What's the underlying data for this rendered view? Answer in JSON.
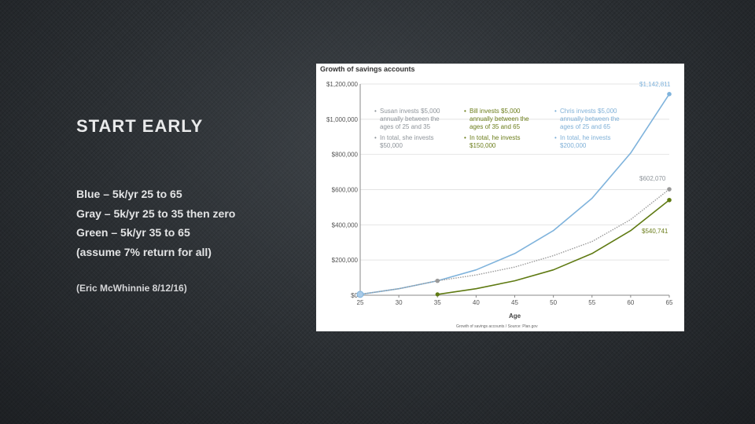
{
  "slide": {
    "title": "START EARLY",
    "lines": [
      "Blue – 5k/yr 25 to 65",
      "Gray – 5k/yr 25 to 35 then zero",
      "Green – 5k/yr 35 to 65",
      "(assume 7% return for all)"
    ],
    "credit": "(Eric  McWhinnie 8/12/16)"
  },
  "chart_data": {
    "type": "line",
    "title": "Growth of savings accounts",
    "xlabel": "Age",
    "ylabel": "",
    "xlim": [
      25,
      65
    ],
    "ylim": [
      0,
      1200000
    ],
    "x_ticks": [
      "25",
      "30",
      "35",
      "40",
      "45",
      "50",
      "55",
      "60",
      "65"
    ],
    "y_ticks": [
      "$0",
      "$200,000",
      "$400,000",
      "$600,000",
      "$800,000",
      "$1,000,000",
      "$1,200,000"
    ],
    "grid": "horizontal",
    "series": [
      {
        "key": "chris",
        "color": "#7fb3dc",
        "style": "solid",
        "x": [
          25,
          30,
          35,
          40,
          45,
          50,
          55,
          60,
          65
        ],
        "values": [
          5000,
          37000,
          82000,
          144000,
          237000,
          367000,
          551000,
          808000,
          1142811
        ],
        "end_label": "$1,142,811"
      },
      {
        "key": "susan",
        "color": "#9a9a9a",
        "style": "dotted",
        "x": [
          25,
          30,
          35,
          40,
          45,
          50,
          55,
          60,
          65
        ],
        "values": [
          5000,
          37000,
          82000,
          115000,
          160000,
          225000,
          305000,
          430000,
          602070
        ],
        "end_label": "$602,070"
      },
      {
        "key": "bill",
        "color": "#5f7a12",
        "style": "solid",
        "x": [
          35,
          40,
          45,
          50,
          55,
          60,
          65
        ],
        "values": [
          5000,
          37000,
          82000,
          144000,
          237000,
          367000,
          540741
        ],
        "end_label": "$540,741"
      }
    ],
    "notes": {
      "susan": [
        "Susan invests $5,000",
        "annually between the",
        "ages of 25 and 35",
        "In total, she invests",
        "$50,000"
      ],
      "bill": [
        "Bill invests $5,000",
        "annually between the",
        "ages of 35 and 65",
        "In total, he invests",
        "$150,000"
      ],
      "chris": [
        "Chris invests $5,000",
        "annually between the",
        "ages of 25 and 65",
        "In total, he invests",
        "$200,000"
      ]
    },
    "source": "Growth of savings accounts / Source: Plan.gov"
  }
}
